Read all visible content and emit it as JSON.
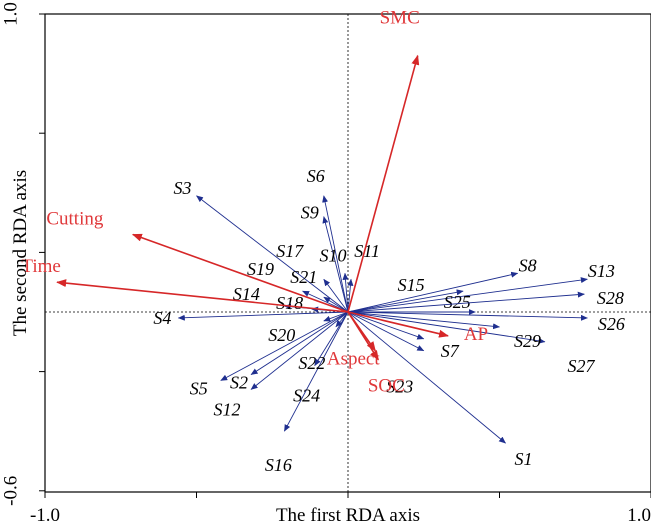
{
  "chart_data": {
    "type": "biplot",
    "xlabel": "The first RDA axis",
    "ylabel": "The second RDA axis",
    "xlim": [
      -1.0,
      1.0
    ],
    "ylim": [
      -0.6,
      1.0
    ],
    "x_tick_labels": [
      {
        "value": -1.0,
        "label": "-1.0"
      },
      {
        "value": 1.0,
        "label": "1.0"
      }
    ],
    "y_tick_labels": [
      {
        "value": 1.0,
        "label": "1.0"
      },
      {
        "value": -0.6,
        "label": "-0.6"
      }
    ],
    "environmental_color": "#d62728",
    "site_color": "#1f2f8f",
    "environmental_vectors": [
      {
        "name": "SMC",
        "x": 0.23,
        "y": 0.86
      },
      {
        "name": "Cutting",
        "x": -0.71,
        "y": 0.26
      },
      {
        "name": "Time",
        "x": -0.96,
        "y": 0.1
      },
      {
        "name": "Aspect",
        "x": 0.09,
        "y": -0.13
      },
      {
        "name": "SOC",
        "x": 0.1,
        "y": -0.16
      },
      {
        "name": "AP",
        "x": 0.33,
        "y": -0.08
      }
    ],
    "site_vectors": [
      {
        "name": "S1",
        "x": 0.52,
        "y": -0.44
      },
      {
        "name": "S2",
        "x": -0.32,
        "y": -0.21
      },
      {
        "name": "S3",
        "x": -0.5,
        "y": 0.39
      },
      {
        "name": "S4",
        "x": -0.56,
        "y": -0.02
      },
      {
        "name": "S5",
        "x": -0.42,
        "y": -0.23
      },
      {
        "name": "S6",
        "x": -0.08,
        "y": 0.39
      },
      {
        "name": "S7",
        "x": 0.25,
        "y": -0.09
      },
      {
        "name": "S8",
        "x": 0.56,
        "y": 0.13
      },
      {
        "name": "S9",
        "x": -0.08,
        "y": 0.32
      },
      {
        "name": "S10",
        "x": -0.01,
        "y": 0.13
      },
      {
        "name": "S11",
        "x": 0.01,
        "y": 0.11
      },
      {
        "name": "S12",
        "x": -0.32,
        "y": -0.26
      },
      {
        "name": "S13",
        "x": 0.79,
        "y": 0.11
      },
      {
        "name": "S14",
        "x": -0.21,
        "y": 0.02
      },
      {
        "name": "S15",
        "x": 0.38,
        "y": 0.07
      },
      {
        "name": "S16",
        "x": -0.21,
        "y": -0.4
      },
      {
        "name": "S17",
        "x": -0.08,
        "y": 0.11
      },
      {
        "name": "S18",
        "x": -0.12,
        "y": 0.01
      },
      {
        "name": "S19",
        "x": -0.15,
        "y": 0.07
      },
      {
        "name": "S20",
        "x": -0.08,
        "y": -0.03
      },
      {
        "name": "S21",
        "x": -0.08,
        "y": 0.05
      },
      {
        "name": "S22",
        "x": -0.04,
        "y": -0.05
      },
      {
        "name": "S23",
        "x": 0.25,
        "y": -0.13
      },
      {
        "name": "S24",
        "x": -0.11,
        "y": -0.18
      },
      {
        "name": "S25",
        "x": 0.42,
        "y": 0.0
      },
      {
        "name": "S26",
        "x": 0.79,
        "y": -0.02
      },
      {
        "name": "S27",
        "x": 0.65,
        "y": -0.1
      },
      {
        "name": "S28",
        "x": 0.78,
        "y": 0.06
      },
      {
        "name": "S29",
        "x": 0.5,
        "y": -0.05
      }
    ]
  }
}
